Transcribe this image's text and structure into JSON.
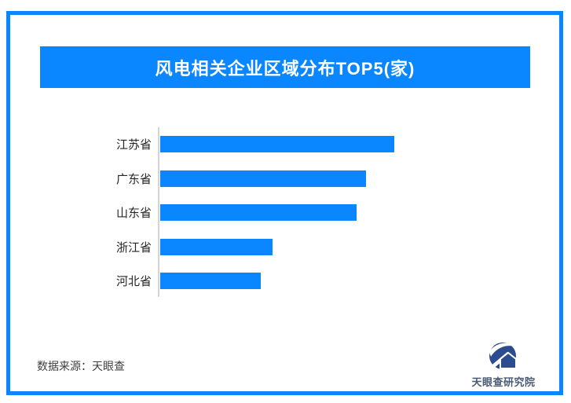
{
  "colors": {
    "accent": "#0a87fe",
    "bar": "#0a87fe",
    "axis": "#d4d4d4",
    "logo_navy": "#2b4c8e",
    "logo_text": "#4a5a74"
  },
  "title_banner": {
    "text": "风电相关企业区域分布TOP5(家)"
  },
  "chart_data": {
    "type": "bar",
    "orientation": "horizontal",
    "title": "风电相关企业区域分布TOP5(家)",
    "categories": [
      "江苏省",
      "广东省",
      "山东省",
      "浙江省",
      "河北省"
    ],
    "values_relative_pct_of_max": [
      100,
      88,
      84,
      48,
      43
    ],
    "value_axis_labels": "none",
    "data_labels": "none",
    "legend": "none",
    "grid": "off",
    "bar_color": "#0a87fe"
  },
  "footer": {
    "source": "数据来源：天眼查"
  },
  "logo": {
    "label": "天眼查研究院"
  }
}
